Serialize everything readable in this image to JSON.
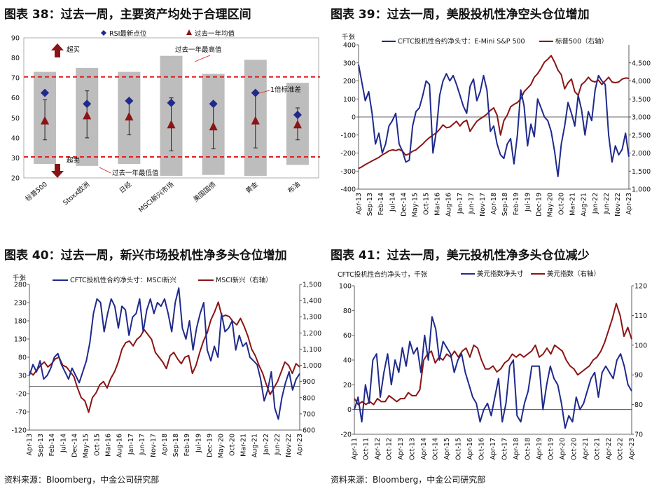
{
  "panels": [
    {
      "title": "图表 38：过去一周，主要资产均处于合理区间"
    },
    {
      "title": "图表 39：过去一周，美股投机性净空头仓位增加"
    },
    {
      "title": "图表 40：过去一周，新兴市场投机性净多头仓位增加"
    },
    {
      "title": "图表 41：过去一周，美元投机性净多头仓位减少"
    }
  ],
  "sources": {
    "left": "资料来源：Bloomberg，中金公司研究部",
    "right": "资料来源：Bloomberg，中金公司研究部"
  },
  "colors": {
    "navy": "#1f2a8c",
    "darkred": "#8b1414",
    "red": "#e02020",
    "gray": "#bdbdbd"
  },
  "chart_data": [
    {
      "type": "range-bar",
      "title": "图表 38：过去一周，主要资产均处于合理区间",
      "legend": [
        "RSI最新点位",
        "过去一年均值"
      ],
      "categories": [
        "标普500",
        "Stoxx欧洲",
        "日经",
        "MSCI新兴市场",
        "美国国债",
        "黄金",
        "布油"
      ],
      "ylim": [
        20,
        90
      ],
      "yticks": [
        "20",
        "30",
        "40",
        "50",
        "60",
        "70",
        "80",
        "90"
      ],
      "overbought": 70.5,
      "oversold": 30.5,
      "year_low": [
        27,
        26,
        27,
        21,
        21.5,
        21,
        26.5
      ],
      "year_high": [
        73,
        75,
        73,
        81,
        72,
        79,
        67.5
      ],
      "rsi_latest": [
        62.5,
        57,
        58.5,
        57.5,
        57,
        62.5,
        51.5
      ],
      "year_mean": [
        48.5,
        51,
        50.5,
        46.5,
        45.5,
        48.5,
        46.5
      ],
      "std_low": [
        39,
        40,
        41.5,
        33.5,
        34.5,
        35,
        39
      ],
      "std_high": [
        59,
        63.5,
        59,
        60,
        56,
        63,
        55
      ],
      "annotations": {
        "overbought": "超买",
        "oversold": "超卖",
        "year_high_label": "过去一年最高值",
        "year_low_label": "过去一年最低值",
        "std_label": "1倍标准差"
      }
    },
    {
      "type": "line",
      "title": "图表 39：过去一周，美股投机性净空头仓位增加",
      "unit": "千张",
      "series": [
        {
          "name": "CFTC投机性合约净头寸：E-Mini S&P 500",
          "axis": "left",
          "values": [
            290,
            190,
            90,
            140,
            20,
            -150,
            -90,
            -200,
            -150,
            -50,
            -20,
            20,
            -150,
            -190,
            -250,
            -240,
            -50,
            30,
            50,
            120,
            200,
            180,
            -200,
            -80,
            120,
            200,
            240,
            200,
            230,
            180,
            120,
            60,
            20,
            170,
            210,
            90,
            140,
            230,
            150,
            -80,
            -50,
            -150,
            -210,
            -230,
            -150,
            -120,
            -260,
            -100,
            150,
            60,
            -160,
            -40,
            -110,
            100,
            50,
            0,
            -20,
            -80,
            -190,
            -330,
            -150,
            -50,
            80,
            20,
            -50,
            120,
            40,
            -100,
            30,
            -20,
            150,
            230,
            200,
            180,
            -100,
            -250,
            -160,
            -210,
            -180,
            -90,
            -220
          ]
        },
        {
          "name": "标普500（右轴）",
          "axis": "right",
          "values": [
            1570,
            1620,
            1680,
            1730,
            1780,
            1830,
            1880,
            1950,
            2000,
            2060,
            2090,
            2070,
            2100,
            2050,
            1940,
            1980,
            2050,
            2090,
            2170,
            2250,
            2350,
            2430,
            2500,
            2560,
            2660,
            2780,
            2700,
            2720,
            2800,
            2880,
            2750,
            2860,
            2910,
            2600,
            2750,
            2880,
            2950,
            3010,
            3080,
            3180,
            3250,
            3050,
            2500,
            2900,
            3050,
            3280,
            3350,
            3400,
            3500,
            3700,
            3800,
            3900,
            4100,
            4200,
            4350,
            4520,
            4600,
            4700,
            4520,
            4300,
            4170,
            3780,
            3950,
            4050,
            3700,
            3600,
            3900,
            3980,
            4100,
            4000,
            3970,
            4020,
            3900,
            4000,
            4100,
            3970,
            3950,
            3970,
            4050,
            4080,
            4070
          ]
        }
      ],
      "left_ylim": [
        -400,
        400
      ],
      "right_ylim": [
        1000,
        5000
      ],
      "left_ticks": [
        "400",
        "300",
        "200",
        "100",
        "0",
        "-100",
        "-200",
        "-300",
        "-400"
      ],
      "right_ticks": [
        "4,500",
        "4,000",
        "3,500",
        "3,000",
        "2,500",
        "2,000",
        "1,500",
        "1,000"
      ],
      "xticks": [
        "Apr-13",
        "Sep-13",
        "Feb-14",
        "Jul-14",
        "Dec-14",
        "May-15",
        "Oct-15",
        "Mar-16",
        "Aug-16",
        "Jan-17",
        "Jun-17",
        "Nov-17",
        "Apr-18",
        "Sep-18",
        "Feb-19",
        "Jul-19",
        "Dec-19",
        "May-20",
        "Oct-20",
        "Mar-21",
        "Aug-21",
        "Jan-22",
        "Jun-22",
        "Nov-22",
        "Apr-23"
      ]
    },
    {
      "type": "line",
      "title": "图表 40：过去一周，新兴市场投机性净多头仓位增加",
      "unit": "千张",
      "series": [
        {
          "name": "CFTC投机性合约净头寸：MSCI新兴",
          "axis": "left",
          "values": [
            30,
            60,
            40,
            70,
            20,
            30,
            50,
            80,
            90,
            60,
            40,
            20,
            50,
            30,
            10,
            40,
            70,
            120,
            200,
            240,
            230,
            150,
            200,
            240,
            220,
            160,
            220,
            210,
            140,
            190,
            200,
            240,
            150,
            210,
            240,
            200,
            230,
            220,
            240,
            200,
            150,
            230,
            270,
            160,
            130,
            180,
            100,
            160,
            200,
            230,
            100,
            70,
            110,
            80,
            200,
            150,
            160,
            180,
            100,
            140,
            110,
            120,
            80,
            70,
            60,
            20,
            -40,
            -10,
            40,
            -60,
            -90,
            -30,
            10,
            40,
            -10,
            20,
            35
          ]
        },
        {
          "name": "MSCI新兴（右轴）",
          "axis": "right",
          "values": [
            960,
            940,
            970,
            1000,
            1020,
            990,
            1010,
            1040,
            1050,
            1000,
            990,
            960,
            930,
            860,
            800,
            780,
            710,
            800,
            830,
            880,
            900,
            860,
            920,
            960,
            1020,
            1100,
            1140,
            1150,
            1120,
            1160,
            1180,
            1220,
            1190,
            1160,
            1080,
            1050,
            1020,
            980,
            1060,
            1080,
            1040,
            1010,
            1050,
            1060,
            950,
            1000,
            1080,
            1150,
            1200,
            1280,
            1330,
            1390,
            1300,
            1310,
            1300,
            1270,
            1250,
            1290,
            1240,
            1180,
            1100,
            1060,
            1000,
            950,
            880,
            820,
            860,
            900,
            960,
            1020,
            1000,
            950,
            1010,
            990
          ]
        }
      ],
      "left_ylim": [
        -120,
        280
      ],
      "right_ylim": [
        600,
        1500
      ],
      "left_ticks": [
        "280",
        "230",
        "180",
        "130",
        "80",
        "30",
        "-20",
        "-70",
        "-120"
      ],
      "right_ticks": [
        "1,500",
        "1,400",
        "1,300",
        "1,200",
        "1,100",
        "1,000",
        "900",
        "800",
        "700",
        "600"
      ],
      "xticks": [
        "Apr-13",
        "Sep-13",
        "Feb-14",
        "Jul-14",
        "Dec-14",
        "May-15",
        "Oct-15",
        "Mar-16",
        "Aug-16",
        "Jan-17",
        "Jun-17",
        "Nov-17",
        "Apr-18",
        "Sep-18",
        "Feb-19",
        "Jul-19",
        "Dec-19",
        "May-20",
        "Oct-20",
        "Mar-21",
        "Aug-21",
        "Jan-22",
        "Jun-22",
        "Nov-22",
        "Apr-23"
      ]
    },
    {
      "type": "line",
      "title": "图表 41：过去一周，美元投机性净多头仓位减少",
      "unit": "CFTC投机性合约净头寸，千张",
      "series": [
        {
          "name": "美元指数净头寸",
          "axis": "left",
          "values": [
            0,
            10,
            -10,
            20,
            5,
            40,
            45,
            10,
            30,
            45,
            20,
            40,
            30,
            50,
            35,
            55,
            45,
            50,
            30,
            60,
            40,
            75,
            65,
            40,
            55,
            50,
            45,
            30,
            40,
            45,
            30,
            20,
            10,
            5,
            -10,
            0,
            5,
            -5,
            10,
            25,
            -10,
            5,
            35,
            40,
            -5,
            -10,
            5,
            15,
            35,
            35,
            35,
            0,
            20,
            35,
            25,
            20,
            5,
            -15,
            -5,
            -10,
            10,
            0,
            5,
            15,
            25,
            30,
            10,
            30,
            35,
            30,
            25,
            40,
            45,
            35,
            20,
            15
          ]
        },
        {
          "name": "美元指数（右轴）",
          "axis": "right",
          "values": [
            82,
            80,
            81,
            80,
            81,
            80,
            82,
            81,
            81,
            83,
            82,
            81,
            82,
            82,
            84,
            83,
            83,
            85,
            95,
            97,
            98,
            94,
            96,
            95,
            97,
            96,
            98,
            96,
            98,
            99,
            96,
            100,
            99,
            95,
            92,
            92,
            93,
            91,
            92,
            94,
            95,
            97,
            96,
            97,
            96,
            97,
            98,
            100,
            96,
            97,
            99,
            97,
            100,
            99,
            98,
            95,
            93,
            92,
            90,
            91,
            92,
            93,
            95,
            96,
            98,
            101,
            105,
            109,
            114,
            110,
            103,
            106,
            102
          ]
        }
      ],
      "left_ylim": [
        -20,
        100
      ],
      "right_ylim": [
        70,
        120
      ],
      "left_ticks": [
        "100",
        "80",
        "60",
        "40",
        "20",
        "0",
        "-20"
      ],
      "right_ticks": [
        "120",
        "110",
        "100",
        "90",
        "80",
        "70"
      ],
      "xticks": [
        "Apr-11",
        "Oct-11",
        "Apr-12",
        "Oct-12",
        "Apr-13",
        "Oct-13",
        "Apr-14",
        "Oct-14",
        "Apr-15",
        "Oct-15",
        "Apr-16",
        "Oct-16",
        "Apr-17",
        "Oct-17",
        "Apr-18",
        "Oct-18",
        "Apr-19",
        "Oct-19",
        "Apr-20",
        "Oct-20",
        "Apr-21",
        "Oct-21",
        "Apr-22",
        "Oct-22",
        "Apr-23"
      ]
    }
  ]
}
